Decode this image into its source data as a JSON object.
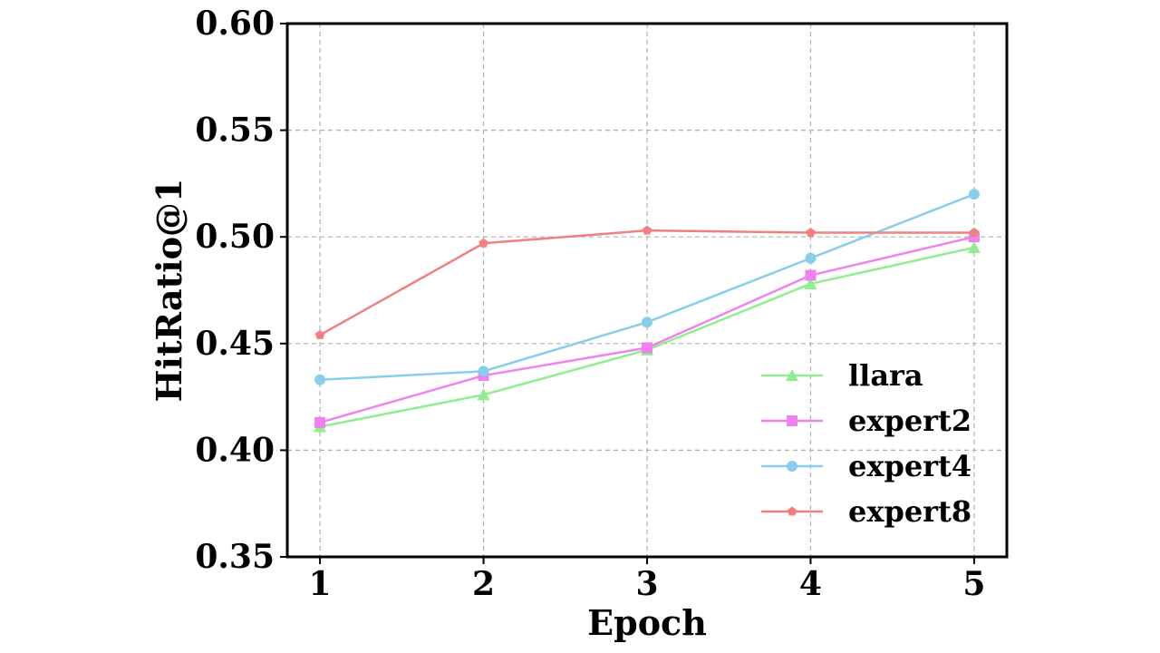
{
  "chart_data": {
    "type": "line",
    "title": "",
    "xlabel": "Epoch",
    "ylabel": "HitRatio@1",
    "x": [
      1,
      2,
      3,
      4,
      5
    ],
    "x_tick_labels": [
      "1",
      "2",
      "3",
      "4",
      "5"
    ],
    "y_tick_labels": [
      "0.35",
      "0.40",
      "0.45",
      "0.50",
      "0.55",
      "0.60"
    ],
    "xlim": [
      0.8,
      5.2
    ],
    "ylim": [
      0.35,
      0.6
    ],
    "grid": true,
    "legend_position": "lower-right",
    "series": [
      {
        "name": "llara",
        "color": "#90ee90",
        "marker": "triangle",
        "values": [
          0.411,
          0.426,
          0.447,
          0.478,
          0.495
        ]
      },
      {
        "name": "expert2",
        "color": "#ee82ee",
        "marker": "square",
        "values": [
          0.413,
          0.435,
          0.448,
          0.482,
          0.5
        ]
      },
      {
        "name": "expert4",
        "color": "#87ceeb",
        "marker": "circle",
        "values": [
          0.433,
          0.437,
          0.46,
          0.49,
          0.52
        ]
      },
      {
        "name": "expert8",
        "color": "#f08080",
        "marker": "pentagon",
        "values": [
          0.454,
          0.497,
          0.503,
          0.502,
          0.502
        ]
      }
    ]
  }
}
